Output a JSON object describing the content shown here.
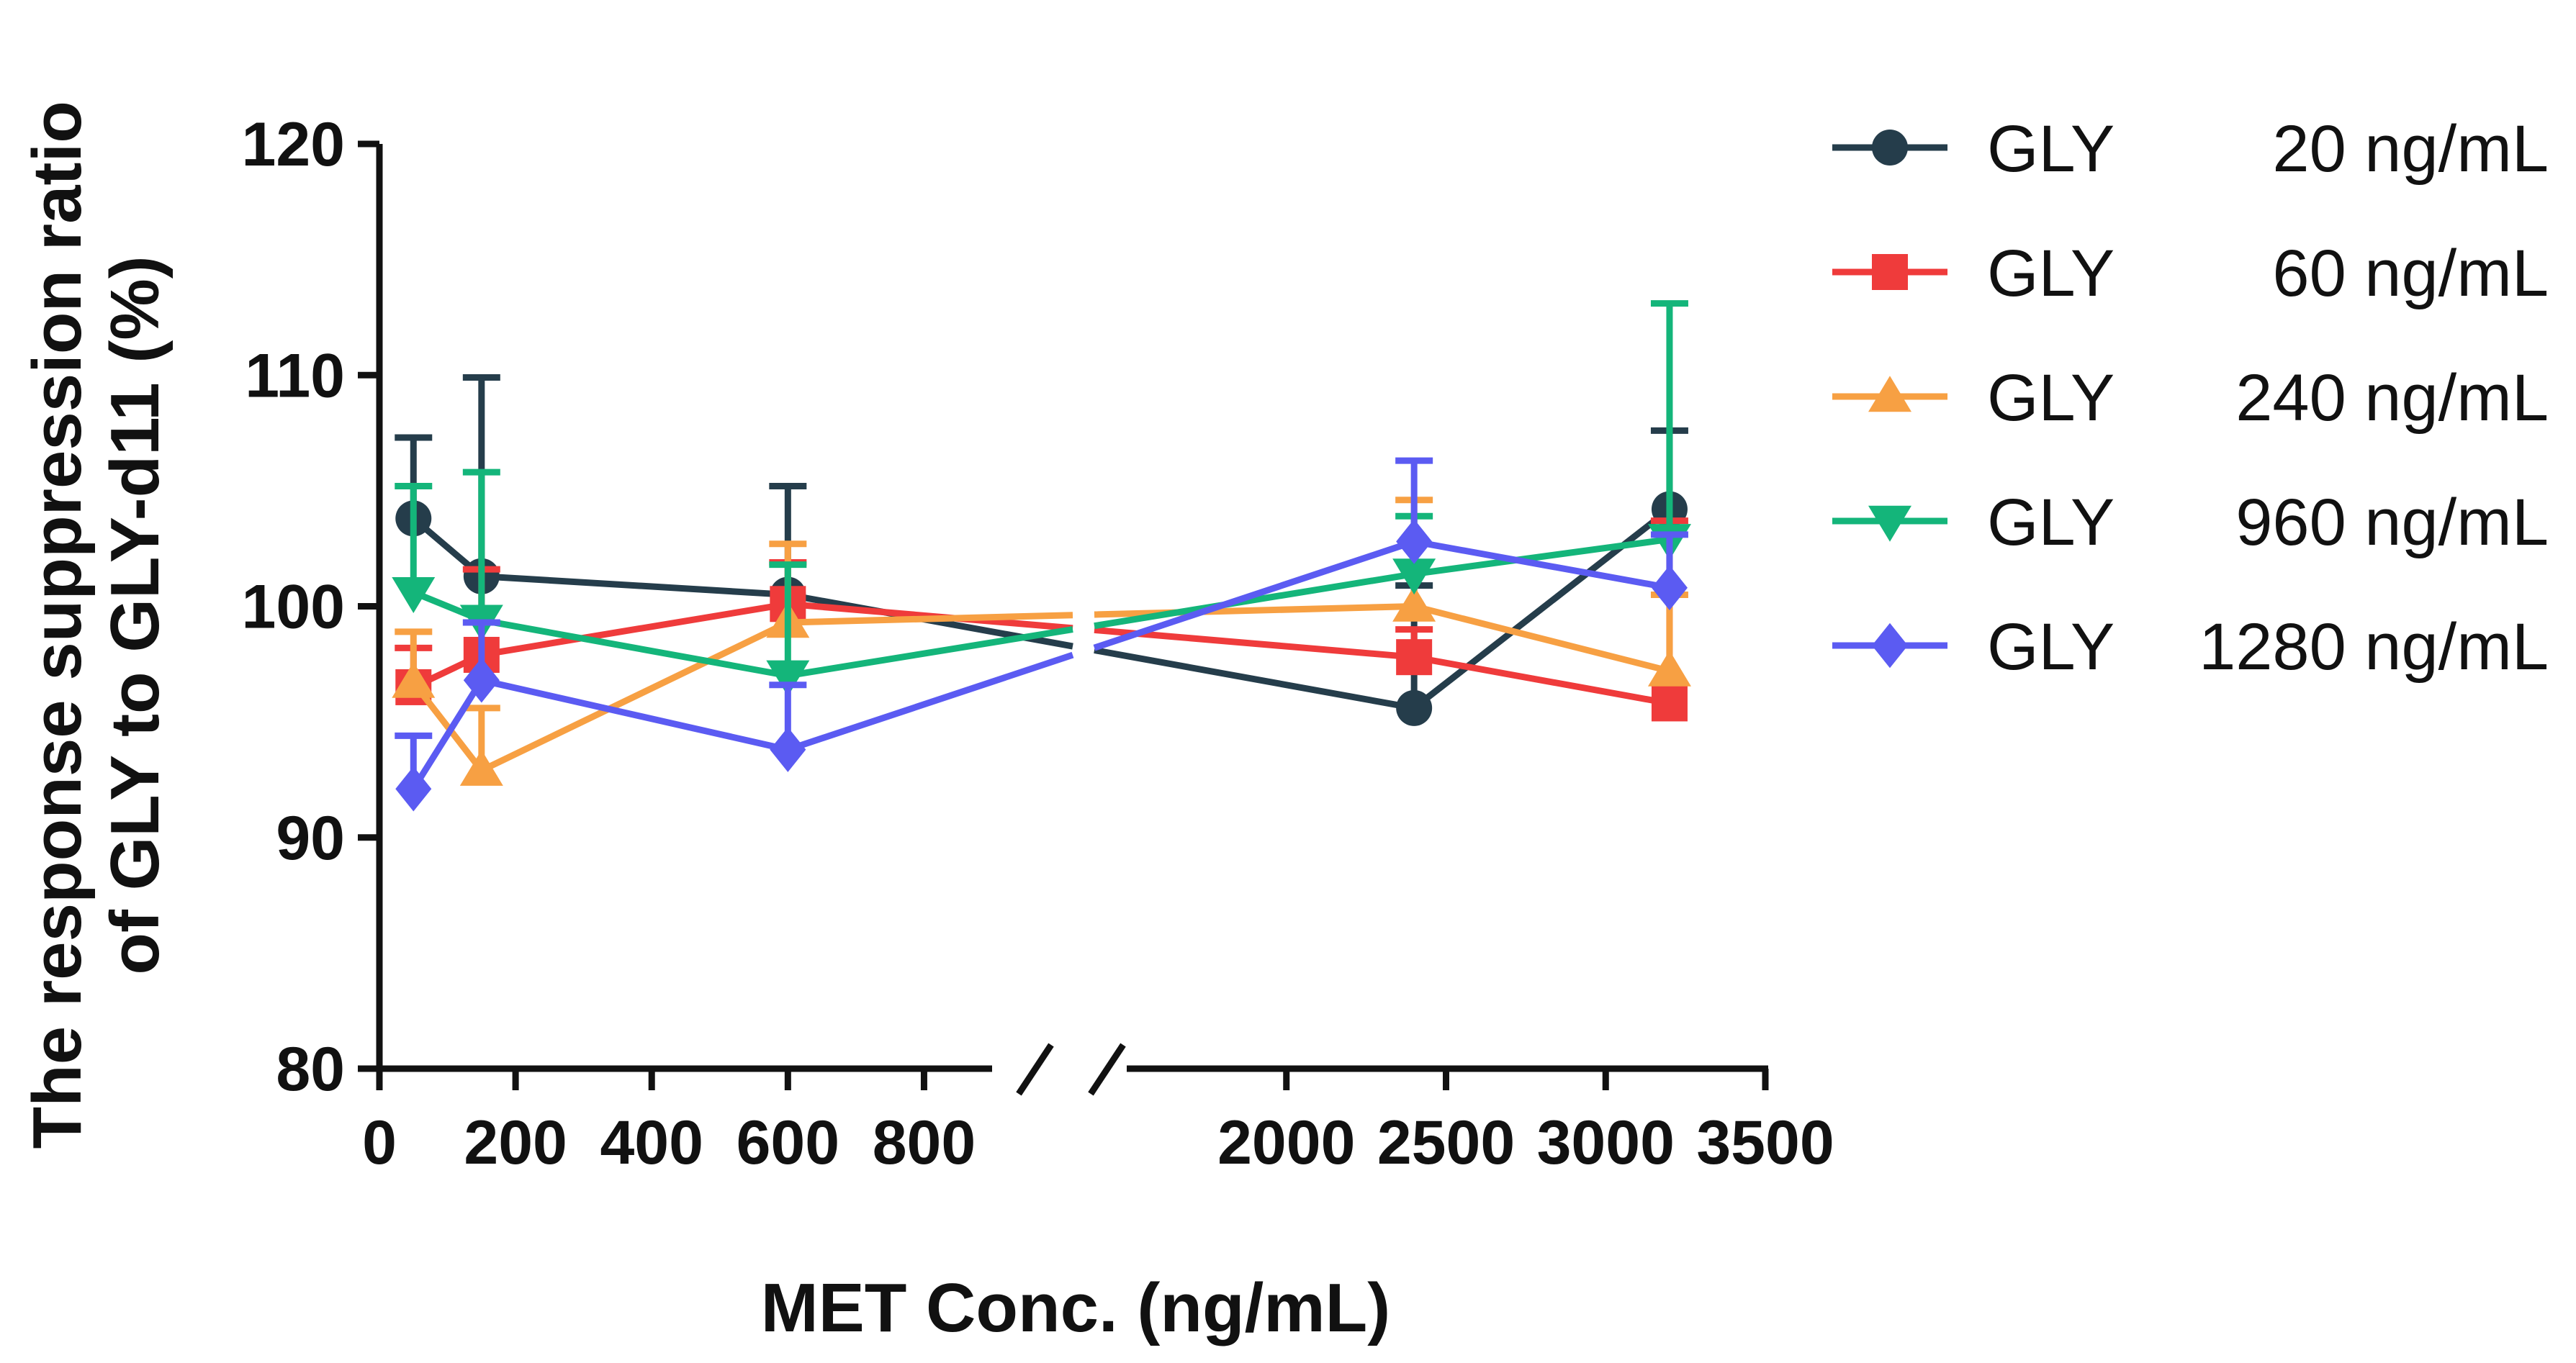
{
  "colors": {
    "axis": "#111111",
    "background": "#ffffff"
  },
  "chart_data": {
    "type": "line",
    "title": "",
    "xlabel": "MET Conc. (ng/mL)",
    "ylabel": "The response suppression ratio of GLY to GLY-d11 (%)",
    "ylabel_lines": [
      "The response suppression ratio",
      "of GLY to GLY-d11 (%)"
    ],
    "ylim": [
      80,
      120
    ],
    "yticks": [
      80,
      90,
      100,
      110,
      120
    ],
    "x_axis_broken": true,
    "x_segment_left": {
      "range": [
        0,
        900
      ],
      "ticks": [
        0,
        200,
        400,
        600,
        800
      ]
    },
    "x_segment_right": {
      "range": [
        1500,
        3500
      ],
      "ticks": [
        2000,
        2500,
        3000,
        3500
      ]
    },
    "x": [
      50,
      150,
      600,
      2400,
      3200
    ],
    "legend_position": "right",
    "error_bars": "one-sided (upper), mean + SD",
    "series": [
      {
        "name": "GLY    20 ng/mL",
        "legend_left": "GLY",
        "legend_right": "20 ng/mL",
        "color": "#253d4b",
        "marker": "circle",
        "values": [
          103.8,
          101.3,
          100.5,
          95.6,
          104.2
        ],
        "error_top": [
          107.3,
          109.9,
          105.2,
          100.9,
          107.6
        ]
      },
      {
        "name": "GLY    60 ng/mL",
        "legend_left": "GLY",
        "legend_right": "60 ng/mL",
        "color": "#ef3b3b",
        "marker": "square",
        "values": [
          96.5,
          97.9,
          100.1,
          97.8,
          95.8
        ],
        "error_top": [
          98.2,
          101.6,
          101.9,
          99.0,
          103.7
        ]
      },
      {
        "name": "GLY  240 ng/mL",
        "legend_left": "GLY",
        "legend_right": "240 ng/mL",
        "color": "#f7a043",
        "marker": "triangle-up",
        "values": [
          96.7,
          92.9,
          99.3,
          100.0,
          97.2
        ],
        "error_top": [
          98.9,
          95.6,
          102.7,
          104.6,
          100.5
        ]
      },
      {
        "name": "GLY  960 ng/mL",
        "legend_left": "GLY",
        "legend_right": "960 ng/mL",
        "color": "#14b57a",
        "marker": "triangle-down",
        "values": [
          100.6,
          99.4,
          97.0,
          101.4,
          102.9
        ],
        "error_top": [
          105.2,
          105.8,
          101.8,
          103.9,
          113.1
        ]
      },
      {
        "name": "GLY 1280 ng/mL",
        "legend_left": "GLY",
        "legend_right": "1280 ng/mL",
        "color": "#5b5bf2",
        "marker": "diamond",
        "values": [
          92.1,
          96.8,
          93.8,
          102.8,
          100.8
        ],
        "error_top": [
          94.4,
          99.3,
          96.6,
          106.3,
          103.1
        ]
      }
    ]
  }
}
